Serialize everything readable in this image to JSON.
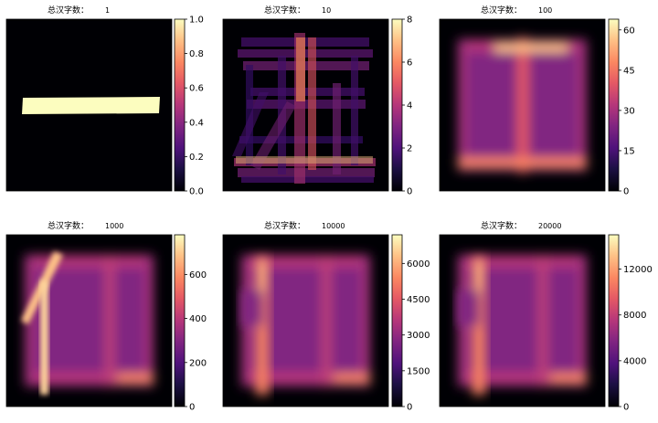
{
  "figure": {
    "title_prefix": "总汉字数："
  },
  "colors": {
    "background_dark": "#000004",
    "magma_mid": "#b73779",
    "magma_high": "#fcfdbf",
    "axes_line": "#000000"
  },
  "chart_data": [
    {
      "type": "heatmap",
      "title": "总汉字数：",
      "count_label": "1",
      "colorbar": {
        "min": 0,
        "max": 1.0,
        "ticks": [
          "0.0",
          "0.2",
          "0.4",
          "0.6",
          "0.8",
          "1.0"
        ]
      },
      "pattern": "single_horizontal_stroke"
    },
    {
      "type": "heatmap",
      "title": "总汉字数：",
      "count_label": "10",
      "colorbar": {
        "min": 0,
        "max": 8,
        "ticks": [
          "0",
          "2",
          "4",
          "6",
          "8"
        ]
      },
      "pattern": "overlapping_strokes"
    },
    {
      "type": "heatmap",
      "title": "总汉字数：",
      "count_label": "100",
      "colorbar": {
        "min": 0,
        "max": 64,
        "ticks": [
          "0",
          "15",
          "30",
          "45",
          "60"
        ]
      },
      "pattern": "blurred_square"
    },
    {
      "type": "heatmap",
      "title": "总汉字数：",
      "count_label": "1000",
      "colorbar": {
        "min": 0,
        "max": 780,
        "ticks": [
          "0",
          "200",
          "400",
          "600"
        ]
      },
      "pattern": "square_with_left_stroke"
    },
    {
      "type": "heatmap",
      "title": "总汉字数：",
      "count_label": "10000",
      "colorbar": {
        "min": 0,
        "max": 7200,
        "ticks": [
          "0",
          "1500",
          "3000",
          "4500",
          "6000"
        ]
      },
      "pattern": "square_with_left_vertical"
    },
    {
      "type": "heatmap",
      "title": "总汉字数：",
      "count_label": "20000",
      "colorbar": {
        "min": 0,
        "max": 15000,
        "ticks": [
          "0",
          "4000",
          "8000",
          "12000"
        ]
      },
      "pattern": "square_with_left_vertical"
    }
  ]
}
